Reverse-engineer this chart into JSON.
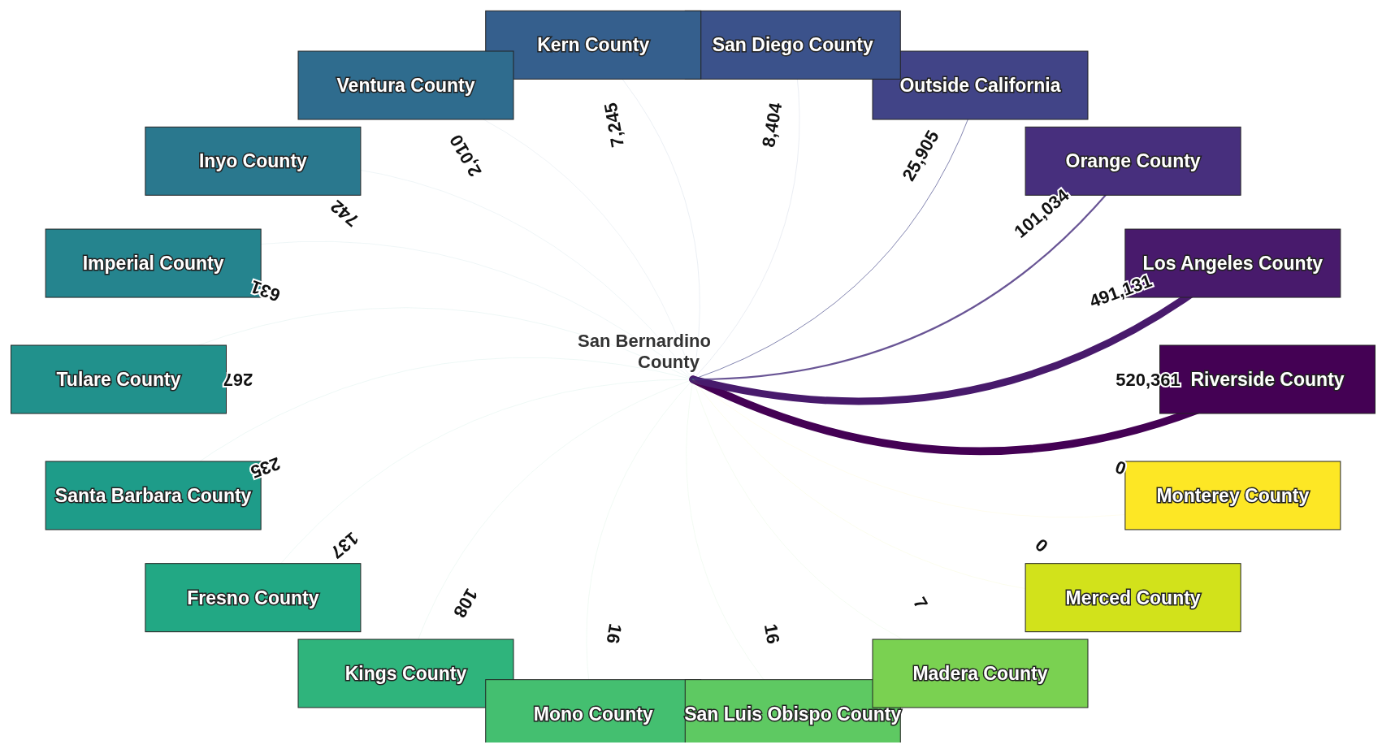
{
  "chart_data": {
    "type": "other",
    "categories": [
      "Riverside County",
      "Los Angeles County",
      "Orange County",
      "Outside California",
      "San Diego County",
      "Kern County",
      "Ventura County",
      "Inyo County",
      "Imperial County",
      "Tulare County",
      "Santa Barbara County",
      "Fresno County",
      "Kings County",
      "Mono County",
      "San Luis Obispo County",
      "Madera County",
      "Merced County",
      "Monterey County"
    ],
    "values": [
      520361,
      491131,
      101034,
      25905,
      8404,
      7245,
      2010,
      742,
      631,
      267,
      235,
      137,
      108,
      16,
      16,
      7,
      0,
      0
    ],
    "colors": [
      "#440154",
      "#481a6c",
      "#472f7d",
      "#414487",
      "#3b528b",
      "#355f8d",
      "#2f6c8e",
      "#2a788e",
      "#25848e",
      "#21918c",
      "#1e9c89",
      "#22a884",
      "#2fb47c",
      "#44bf70",
      "#5ec962",
      "#7ad151",
      "#d2e21b",
      "#fde725"
    ],
    "annotations": [
      "San Bernardino County"
    ],
    "value_labels": [
      "520,361",
      "491,131",
      "101,034",
      "25,905",
      "8,404",
      "7,245",
      "2,010",
      "742",
      "631",
      "267",
      "235",
      "137",
      "108",
      "16",
      "16",
      "7",
      "0",
      "0"
    ]
  }
}
